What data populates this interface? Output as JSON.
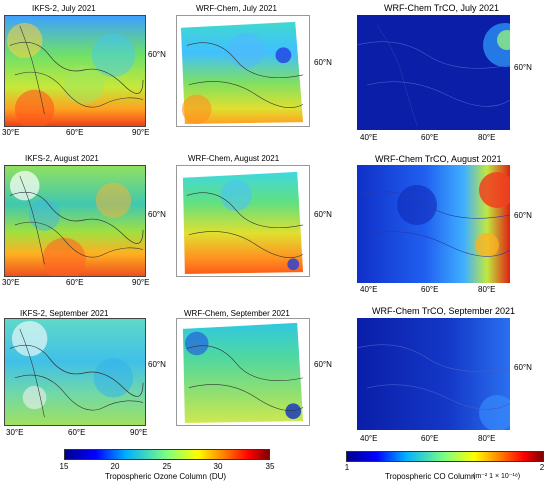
{
  "titles": {
    "r1c1": "IKFS-2, July 2021",
    "r1c2": "WRF-Chem, July 2021",
    "r1c3": "WRF-Chem TrCO, July 2021",
    "r2c1": "IKFS-2, August 2021",
    "r2c2": "WRF-Chem, August 2021",
    "r2c3": "WRF-Chem TrCO, August 2021",
    "r3c1": "IKFS-2, September 2021",
    "r3c2": "WRF-Chem, September 2021",
    "r3c3": "WRF-Chem TrCO, September 2021"
  },
  "axes": {
    "lat": "60°N",
    "o3_lon": [
      "30°E",
      "60°E",
      "90°E"
    ],
    "co_lon": [
      "40°E",
      "60°E",
      "80°E"
    ]
  },
  "ozone_colorbar": {
    "ticks": [
      "15",
      "20",
      "25",
      "30",
      "35"
    ],
    "label": "Tropospheric Ozone Column (DU)"
  },
  "co_colorbar": {
    "ticks": [
      "1",
      "2"
    ],
    "label": "Tropospheric CO Column",
    "units": "(m⁻²  1 × 10⁻¹⁸)"
  },
  "colors": {
    "jet_low": "#00008f",
    "jet_mid": "#7fff7f",
    "jet_high": "#7f0000"
  }
}
